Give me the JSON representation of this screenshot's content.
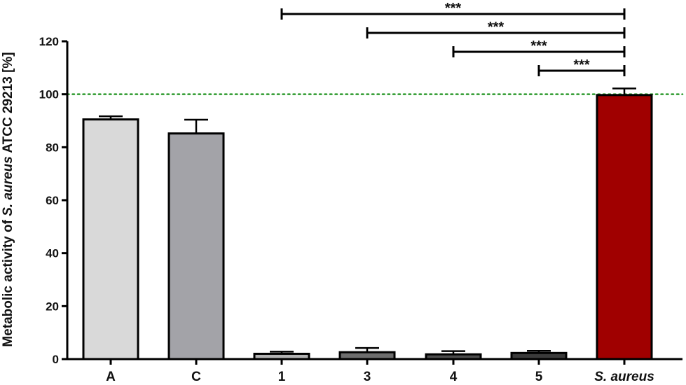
{
  "chart_data": {
    "type": "bar",
    "title": "",
    "xlabel": "",
    "ylabel": {
      "prefix": "Metabolic activity of ",
      "species": "S. aureus",
      "suffix": " ATCC 29213 [%]"
    },
    "ylim": [
      0,
      120
    ],
    "yticks": [
      "0",
      "20",
      "40",
      "60",
      "80",
      "100",
      "120"
    ],
    "categories": [
      {
        "label": "A",
        "italic": false
      },
      {
        "label": "C",
        "italic": false
      },
      {
        "label": "1",
        "italic": false
      },
      {
        "label": "3",
        "italic": false
      },
      {
        "label": "4",
        "italic": false
      },
      {
        "label": "5",
        "italic": false
      },
      {
        "label": "S. aureus",
        "italic": true
      }
    ],
    "values": [
      90.5,
      85.2,
      2.0,
      2.6,
      1.8,
      2.3,
      99.7
    ],
    "errors": [
      1.2,
      5.2,
      0.8,
      1.6,
      1.2,
      0.8,
      2.5
    ],
    "colors": [
      "#d9d9d9",
      "#a3a3a8",
      "#b3b3b3",
      "#6e6e6e",
      "#4d4d4d",
      "#3a3a3a",
      "#a00000"
    ],
    "reference_line": {
      "y": 100,
      "color": "#2e9a2e",
      "style": "dotted"
    },
    "significance": [
      {
        "from": "1",
        "to": "S. aureus",
        "label": "***"
      },
      {
        "from": "3",
        "to": "S. aureus",
        "label": "***"
      },
      {
        "from": "4",
        "to": "S. aureus",
        "label": "***"
      },
      {
        "from": "5",
        "to": "S. aureus",
        "label": "***"
      }
    ],
    "grid": false,
    "legend": "none"
  }
}
